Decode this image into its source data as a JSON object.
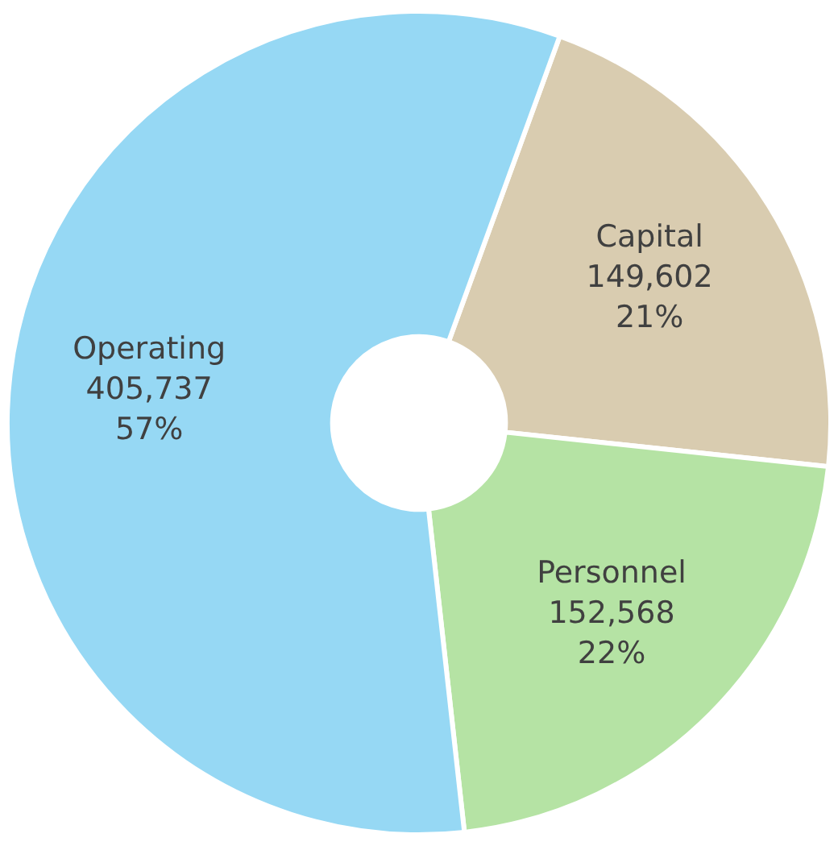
{
  "chart_data": {
    "type": "donut",
    "categories": [
      "Capital",
      "Personnel",
      "Operating"
    ],
    "values": [
      149602,
      152568,
      405737
    ],
    "colors": [
      "#d9ccb0",
      "#b5e3a4",
      "#96d8f4"
    ],
    "value_labels": [
      "149,602\n21%",
      "152,568\n22%",
      "405,737\n57%"
    ],
    "legend": false
  }
}
